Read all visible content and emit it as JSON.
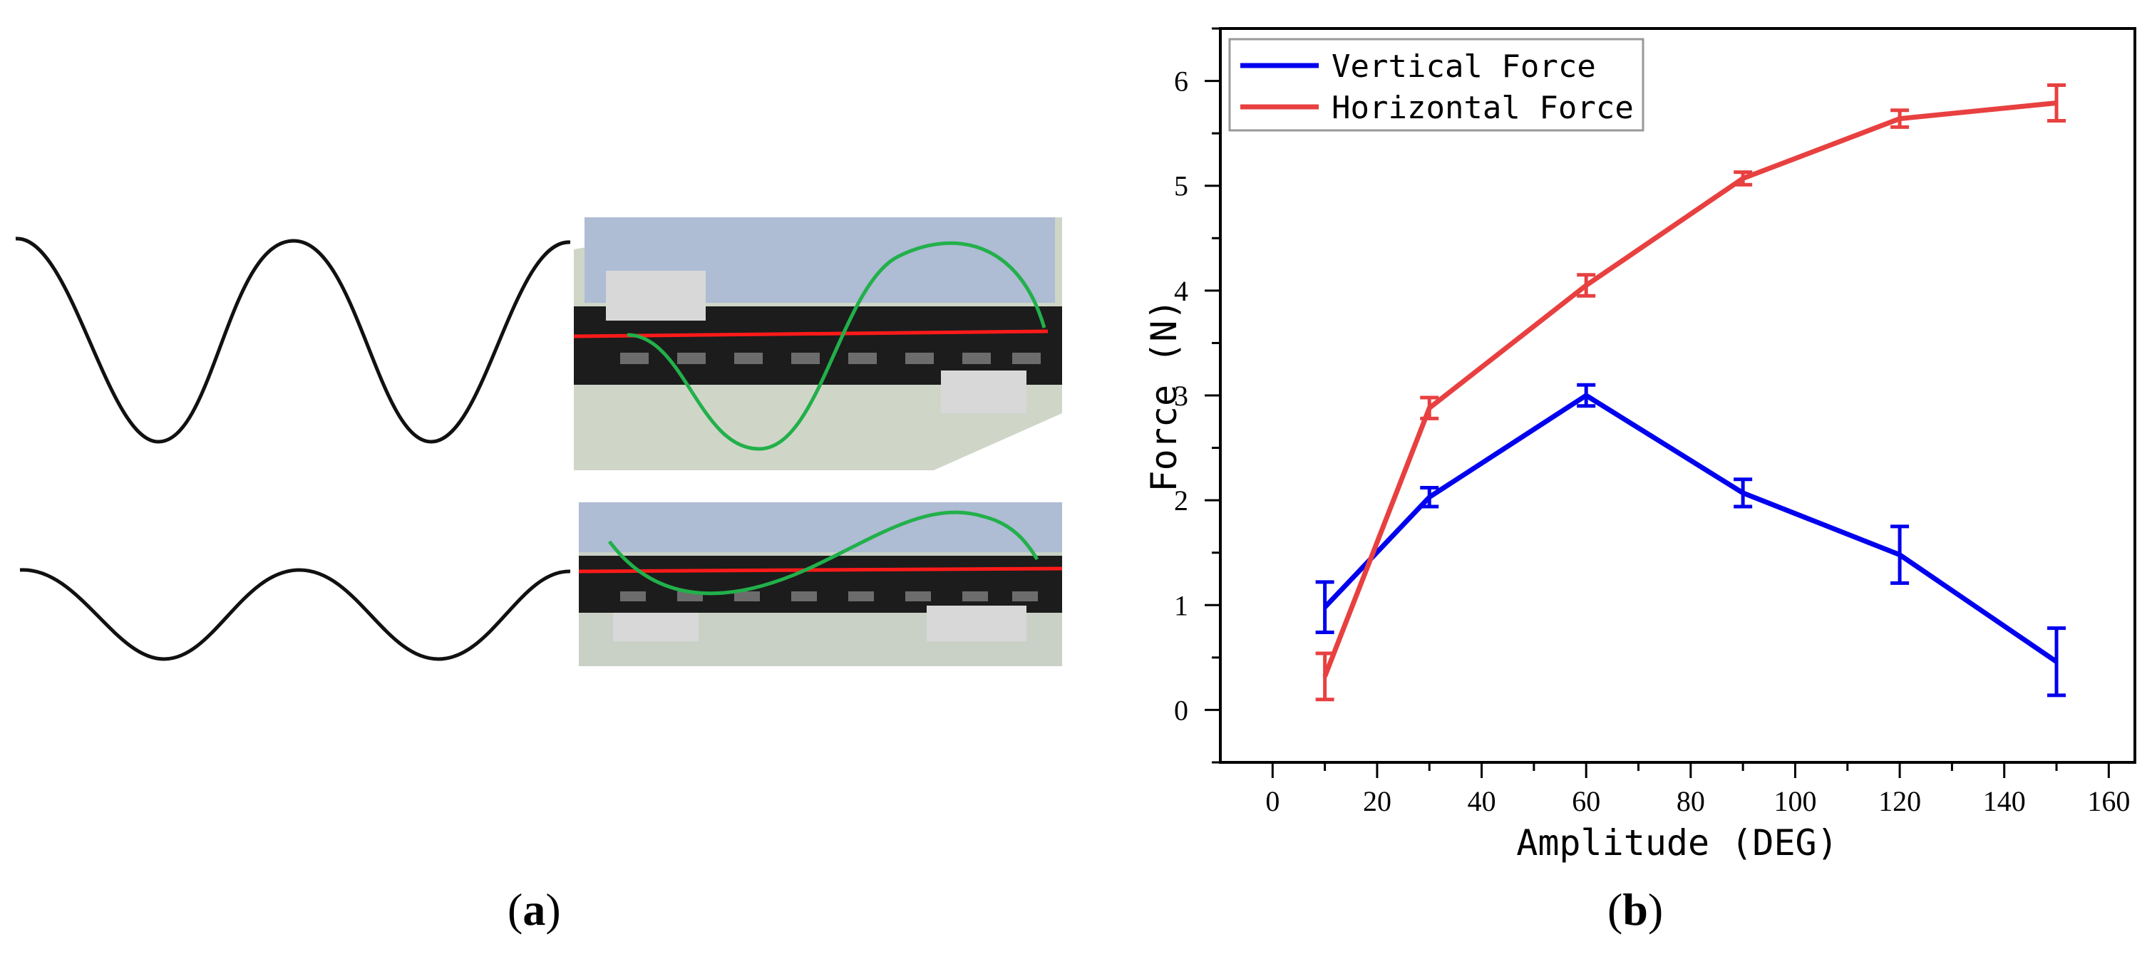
{
  "panels": {
    "a_label": "a",
    "b_label": "b"
  },
  "chart_data": {
    "type": "line",
    "title": "",
    "xlabel": "Amplitude (DEG)",
    "ylabel": "Force (N)",
    "xlim": [
      -10,
      165
    ],
    "ylim": [
      -0.5,
      6.5
    ],
    "xticks": [
      0,
      20,
      40,
      60,
      80,
      100,
      120,
      140,
      160
    ],
    "yticks": [
      0,
      1,
      2,
      3,
      4,
      5,
      6
    ],
    "grid": false,
    "legend_position": "top-left",
    "x": [
      10,
      30,
      60,
      90,
      120,
      150
    ],
    "series": [
      {
        "name": "Vertical Force",
        "color": "#0000ee",
        "values": [
          0.98,
          2.03,
          3.0,
          2.07,
          1.48,
          0.46
        ],
        "errors": [
          0.24,
          0.09,
          0.1,
          0.13,
          0.27,
          0.32
        ]
      },
      {
        "name": "Horizontal Force",
        "color": "#e84040",
        "values": [
          0.32,
          2.88,
          4.05,
          5.07,
          5.64,
          5.79
        ],
        "errors": [
          0.22,
          0.1,
          0.1,
          0.06,
          0.08,
          0.17
        ]
      }
    ]
  }
}
